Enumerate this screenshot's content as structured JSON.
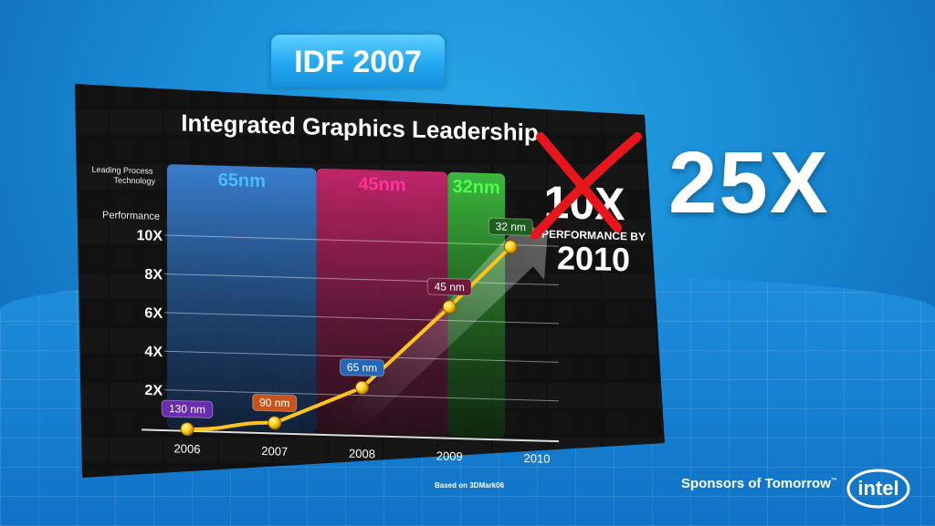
{
  "header": {
    "event_tag": "IDF 2007"
  },
  "chart_data": {
    "type": "line",
    "title": "Integrated Graphics Leadership",
    "process_label": "Leading Process Technology",
    "ylabel": "Performance",
    "x": [
      "2006",
      "2007",
      "2008",
      "2009",
      "2010"
    ],
    "ylim": [
      0,
      10
    ],
    "yticks": [
      {
        "value": 2,
        "label": "2X"
      },
      {
        "value": 4,
        "label": "4X"
      },
      {
        "value": 6,
        "label": "6X"
      },
      {
        "value": 8,
        "label": "8X"
      },
      {
        "value": 10,
        "label": "10X"
      }
    ],
    "bands": [
      {
        "label": "65nm",
        "from": 2006,
        "to": 2007.5,
        "color": "#2f76c9"
      },
      {
        "label": "45nm",
        "from": 2007.5,
        "to": 2009.0,
        "color": "#b3205f"
      },
      {
        "label": "32nm",
        "from": 2009.0,
        "to": 2009.5,
        "color": "#2fa52f"
      }
    ],
    "series": [
      {
        "values": [
          {
            "x": 2006,
            "y": 0.0,
            "label": "130 nm",
            "color": "#6a2cb0"
          },
          {
            "x": 2007,
            "y": 0.45,
            "label": "90 nm",
            "color": "#c8541c"
          },
          {
            "x": 2008,
            "y": 2.4,
            "label": "65 nm",
            "color": "#2466b8"
          },
          {
            "x": 2009,
            "y": 6.7,
            "label": "45 nm",
            "color": "#6e1a38"
          },
          {
            "x": 2009.7,
            "y": 9.9,
            "label": "32 nm",
            "color": "#1f5e1f"
          }
        ],
        "color": "#ffc419"
      }
    ],
    "callout": {
      "old_value": "10X",
      "caption": "PERFORMANCE BY",
      "year": "2010"
    },
    "footnote": "Based on 3DMark06"
  },
  "overlay": {
    "revised_value": "25X"
  },
  "branding": {
    "tagline": "Sponsors of Tomorrow",
    "tm": "™",
    "logo_text": "intel"
  },
  "colors": {
    "line": "#ffc419",
    "x_mark": "#e8161c",
    "accent": "#22a8f0"
  }
}
